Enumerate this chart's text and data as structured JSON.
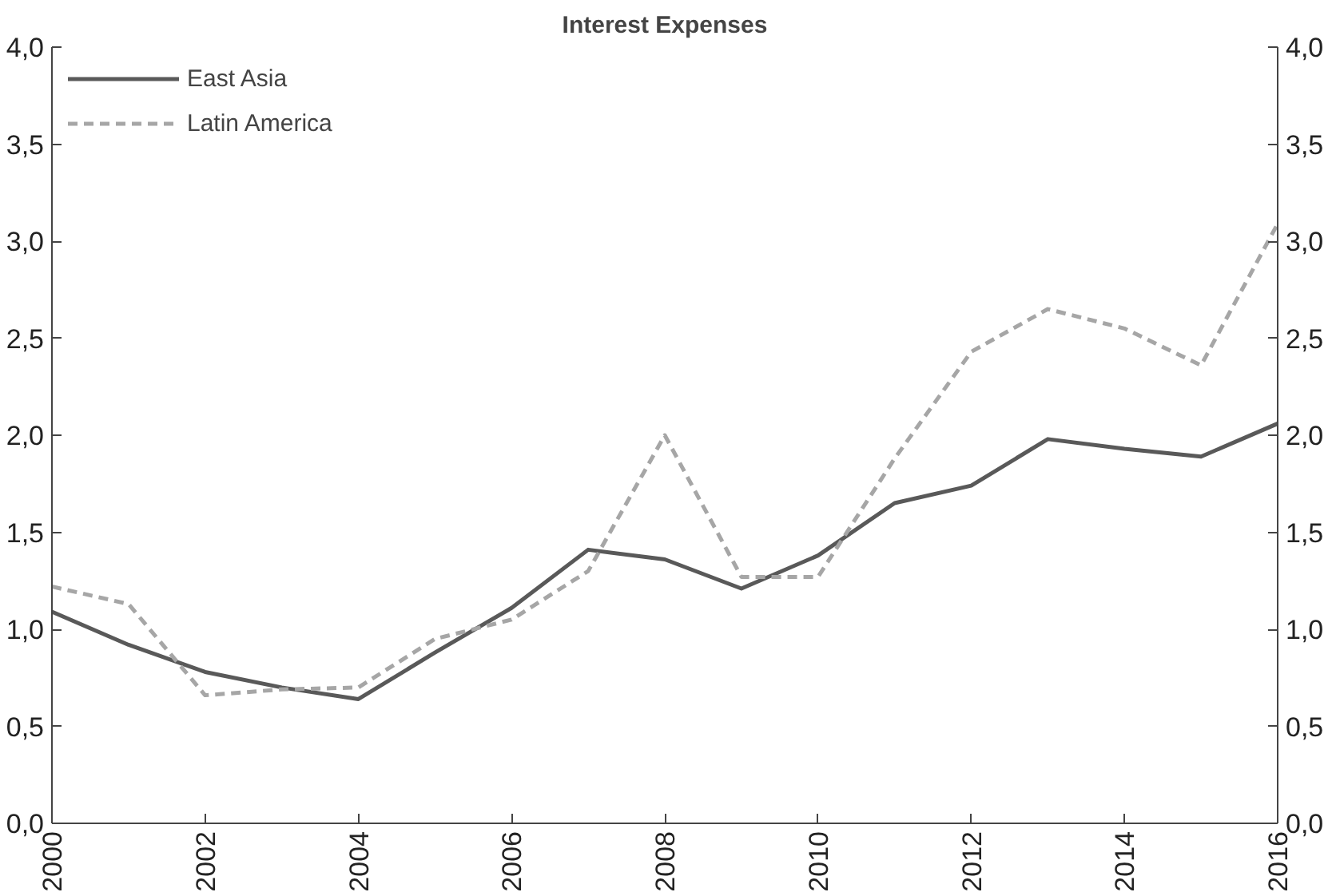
{
  "chart_data": {
    "type": "line",
    "title": "Interest Expenses",
    "x": [
      2000,
      2001,
      2002,
      2003,
      2004,
      2005,
      2006,
      2007,
      2008,
      2009,
      2010,
      2011,
      2012,
      2013,
      2014,
      2015,
      2016
    ],
    "series": [
      {
        "name": "East Asia",
        "color": "#595959",
        "line_style": "solid",
        "values": [
          1.09,
          0.92,
          0.78,
          0.7,
          0.64,
          0.88,
          1.11,
          1.41,
          1.36,
          1.21,
          1.38,
          1.65,
          1.74,
          1.98,
          1.93,
          1.89,
          2.06
        ]
      },
      {
        "name": "Latin America",
        "color": "#a6a6a6",
        "line_style": "dashed",
        "values": [
          1.22,
          1.13,
          0.66,
          0.69,
          0.7,
          0.95,
          1.05,
          1.3,
          2.0,
          1.27,
          1.27,
          1.88,
          2.43,
          2.65,
          2.55,
          2.36,
          3.09
        ]
      }
    ],
    "xlim": [
      2000,
      2016
    ],
    "xticks": [
      2000,
      2002,
      2004,
      2006,
      2008,
      2010,
      2012,
      2014,
      2016
    ],
    "ylim": [
      0,
      4
    ],
    "yticks": [
      {
        "value": 0,
        "label": "0,0"
      },
      {
        "value": 0.5,
        "label": "0,5"
      },
      {
        "value": 1,
        "label": "1,0"
      },
      {
        "value": 1.5,
        "label": "1,5"
      },
      {
        "value": 2,
        "label": "2,0"
      },
      {
        "value": 2.5,
        "label": "2,5"
      },
      {
        "value": 3,
        "label": "3,0"
      },
      {
        "value": 3.5,
        "label": "3,5"
      },
      {
        "value": 4,
        "label": "4,0"
      }
    ],
    "y2lim": [
      0,
      4
    ],
    "y2ticks": [
      {
        "value": 0,
        "label": "0,0"
      },
      {
        "value": 0.5,
        "label": "0,5"
      },
      {
        "value": 1,
        "label": "1,0"
      },
      {
        "value": 1.5,
        "label": "1,5"
      },
      {
        "value": 2,
        "label": "2,0"
      },
      {
        "value": 2.5,
        "label": "2,5"
      },
      {
        "value": 3,
        "label": "3,0"
      },
      {
        "value": 3.5,
        "label": "3,5"
      },
      {
        "value": 4,
        "label": "4,0"
      }
    ],
    "grid": false,
    "legend": "top left",
    "marker": "none"
  }
}
